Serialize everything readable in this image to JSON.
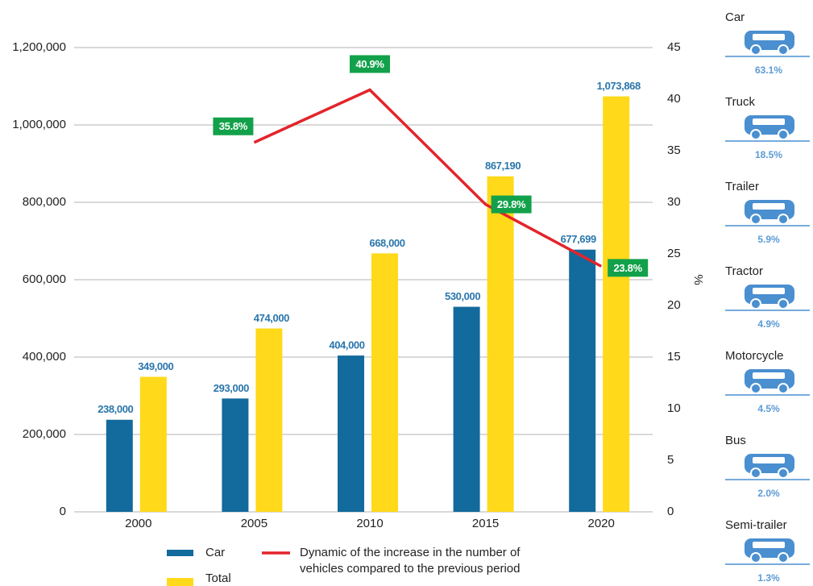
{
  "chart_data": {
    "type": "bar",
    "categories": [
      "2000",
      "2005",
      "2010",
      "2015",
      "2020"
    ],
    "series": [
      {
        "name": "Car",
        "color": "#136a9c",
        "values": [
          238000,
          293000,
          404000,
          530000,
          677699
        ],
        "value_labels": [
          "238,000",
          "293,000",
          "404,000",
          "530,000",
          "677,699"
        ]
      },
      {
        "name": "Total",
        "color": "#ffd91a",
        "values": [
          349000,
          474000,
          668000,
          867190,
          1073868
        ],
        "value_labels": [
          "349,000",
          "474,000",
          "668,000",
          "867,190",
          "1,073,868"
        ]
      },
      {
        "name": "Dynamic of the increase in the number of vehicles compared to the previous period",
        "type": "line",
        "axis": "y2",
        "color": "#e3242b",
        "values": [
          null,
          35.8,
          40.9,
          29.8,
          23.8
        ],
        "value_labels": [
          null,
          "35.8%",
          "40.9%",
          "29.8%",
          "23.8%"
        ]
      }
    ],
    "ylim": [
      0,
      1200000
    ],
    "yticks": [
      0,
      {
        "value": 200000,
        "label": "200,000"
      },
      {
        "value": 400000,
        "label": "400,000"
      },
      {
        "value": 600000,
        "label": "600,000"
      },
      {
        "value": 800000,
        "label": "800,000"
      },
      {
        "value": 1000000,
        "label": "1,000,000"
      },
      {
        "value": 1200000,
        "label": "1,200,000"
      }
    ],
    "y2lim": [
      0,
      45
    ],
    "y2ticks": [
      0,
      5,
      10,
      15,
      20,
      25,
      30,
      35,
      40,
      45
    ],
    "y2label": "%",
    "grid": true,
    "vehicle_shares": {
      "categories": [
        "Car",
        "Truck",
        "Trailer",
        "Tractor",
        "Motorcycle",
        "Bus",
        "Semi-trailer"
      ],
      "values": [
        63.1,
        18.5,
        5.9,
        4.9,
        4.5,
        2.0,
        1.3
      ],
      "value_labels": [
        "63.1%",
        "18.5%",
        "5.9%",
        "4.9%",
        "4.5%",
        "2.0%",
        "1.3%"
      ],
      "color": "#4a8fd0"
    }
  }
}
